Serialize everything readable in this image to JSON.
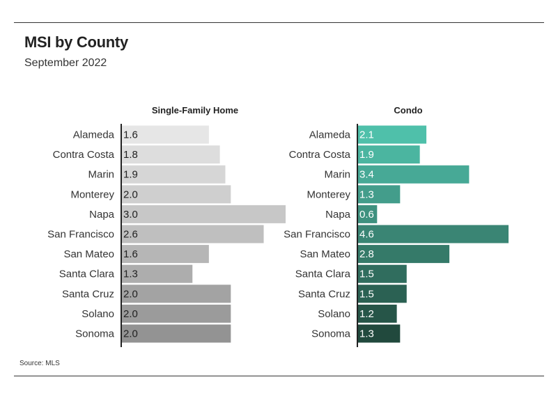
{
  "header": {
    "title": "MSI by County",
    "subtitle": "September 2022"
  },
  "footer": {
    "source": "Source: MLS"
  },
  "chart_data": {
    "type": "bar",
    "orientation": "horizontal",
    "title": "MSI by County",
    "subtitle": "September 2022",
    "categories": [
      "Alameda",
      "Contra Costa",
      "Marin",
      "Monterey",
      "Napa",
      "San Francisco",
      "San Mateo",
      "Santa Clara",
      "Santa Cruz",
      "Solano",
      "Sonoma"
    ],
    "series": [
      {
        "name": "Single-Family Home",
        "values": [
          1.6,
          1.8,
          1.9,
          2.0,
          3.0,
          2.6,
          1.6,
          1.3,
          2.0,
          2.0,
          2.0
        ],
        "labels": [
          "1.6",
          "1.8",
          "1.9",
          "2.0",
          "3.0",
          "2.6",
          "1.6",
          "1.3",
          "2.0",
          "2.0",
          "2.0"
        ],
        "colors": [
          "#e6e6e6",
          "#dddddd",
          "#d6d6d6",
          "#cfcfcf",
          "#c7c7c7",
          "#bfbfbf",
          "#b6b6b6",
          "#adadad",
          "#a3a3a3",
          "#9b9b9b",
          "#939393"
        ],
        "xlim": [
          0,
          3.0
        ]
      },
      {
        "name": "Condo",
        "values": [
          2.1,
          1.9,
          3.4,
          1.3,
          0.6,
          4.6,
          2.8,
          1.5,
          1.5,
          1.2,
          1.3
        ],
        "labels": [
          "2.1",
          "1.9",
          "3.4",
          "1.3",
          "0.6",
          "4.6",
          "2.8",
          "1.5",
          "1.5",
          "1.2",
          "1.3"
        ],
        "colors": [
          "#4fc0aa",
          "#4bb5a0",
          "#47a996",
          "#439d8b",
          "#3e917f",
          "#3a8574",
          "#357a69",
          "#306d5e",
          "#2b6153",
          "#265548",
          "#21493d"
        ],
        "xlim": [
          0,
          4.6
        ]
      }
    ],
    "xlabel": "",
    "ylabel": "",
    "grid": false,
    "legend": "none"
  }
}
